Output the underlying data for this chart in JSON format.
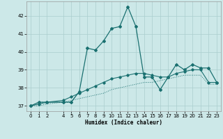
{
  "xlabel": "Humidex (Indice chaleur)",
  "bg_color": "#cce8e8",
  "grid_color": "#aacece",
  "line_color": "#1a7070",
  "xlim": [
    -0.5,
    23.5
  ],
  "ylim": [
    36.7,
    42.8
  ],
  "yticks": [
    37,
    38,
    39,
    40,
    41,
    42
  ],
  "xticks": [
    0,
    1,
    2,
    4,
    5,
    6,
    7,
    8,
    9,
    10,
    11,
    12,
    13,
    14,
    15,
    16,
    17,
    18,
    19,
    20,
    21,
    22,
    23
  ],
  "series1_x": [
    0,
    1,
    2,
    4,
    5,
    6,
    7,
    8,
    9,
    10,
    11,
    12,
    13,
    14,
    15,
    16,
    17,
    18,
    19,
    20,
    21,
    22,
    23
  ],
  "series1_y": [
    37.0,
    37.2,
    37.2,
    37.2,
    37.2,
    37.8,
    40.2,
    40.1,
    40.6,
    41.3,
    41.4,
    42.5,
    41.4,
    38.6,
    38.6,
    37.9,
    38.6,
    39.3,
    39.0,
    39.3,
    39.1,
    39.1,
    38.3
  ],
  "series2_x": [
    0,
    1,
    2,
    4,
    5,
    6,
    7,
    8,
    9,
    10,
    11,
    12,
    13,
    14,
    15,
    16,
    17,
    18,
    19,
    20,
    21,
    22,
    23
  ],
  "series2_y": [
    37.0,
    37.1,
    37.2,
    37.3,
    37.5,
    37.7,
    37.9,
    38.1,
    38.3,
    38.5,
    38.6,
    38.7,
    38.8,
    38.8,
    38.7,
    38.6,
    38.6,
    38.8,
    38.9,
    39.0,
    39.0,
    38.3,
    38.3
  ],
  "series3_x": [
    0,
    1,
    2,
    4,
    5,
    6,
    7,
    8,
    9,
    10,
    11,
    12,
    13,
    14,
    15,
    16,
    17,
    18,
    19,
    20,
    21,
    22,
    23
  ],
  "series3_y": [
    37.0,
    37.0,
    37.1,
    37.2,
    37.3,
    37.4,
    37.5,
    37.6,
    37.7,
    37.9,
    38.0,
    38.1,
    38.2,
    38.3,
    38.3,
    38.4,
    38.5,
    38.6,
    38.7,
    38.7,
    38.7,
    38.2,
    38.2
  ]
}
